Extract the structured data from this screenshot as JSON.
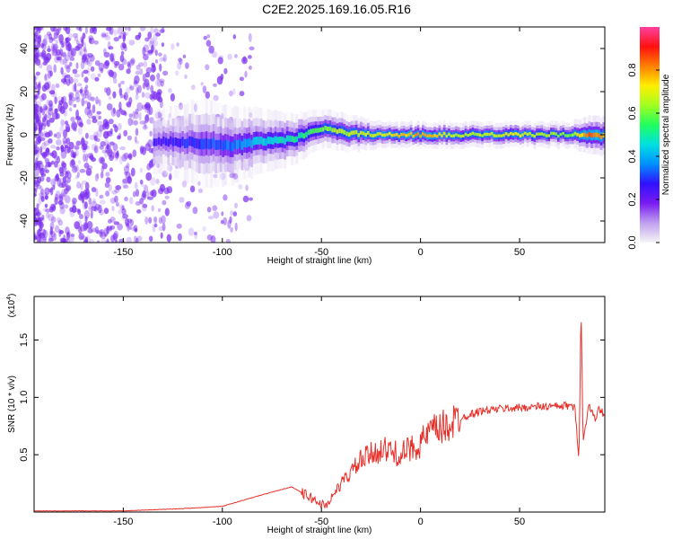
{
  "title": "C2E2.2025.169.16.05.R16",
  "colors": {
    "signal": "#e8302a",
    "specgram_base": "#7a2cf0",
    "colorbar": [
      "#f5f5f5",
      "#c0a0f0",
      "#7a1cf0",
      "#3010ff",
      "#0090ff",
      "#00e0e0",
      "#20ff60",
      "#a0ff20",
      "#ffee00",
      "#ff8000",
      "#ff1010",
      "#ff40a0"
    ]
  },
  "chart_data": [
    {
      "type": "heatmap",
      "name": "spectrogram",
      "xlabel": "Height of straight line (km)",
      "ylabel": "Frequency (Hz)",
      "xlim": [
        -195,
        93
      ],
      "ylim": [
        -50,
        50
      ],
      "xticks": [
        -150,
        -100,
        -50,
        0,
        50
      ],
      "yticks": [
        -40,
        -20,
        0,
        20,
        40
      ],
      "grid": false,
      "ridge": {
        "x": [
          -130,
          -110,
          -95,
          -80,
          -65,
          -50,
          -40,
          -20,
          0,
          20,
          50,
          75,
          85,
          93
        ],
        "y": [
          -3,
          -4,
          -5,
          -3,
          -2,
          3,
          1,
          0,
          0,
          0,
          0,
          0,
          0,
          -1
        ],
        "halfwidth_hz": [
          5,
          7,
          6,
          5,
          4,
          3,
          3,
          2,
          2,
          2,
          2,
          2,
          3,
          3
        ],
        "amplitude": [
          0.25,
          0.3,
          0.35,
          0.45,
          0.5,
          0.6,
          0.65,
          0.7,
          0.8,
          0.65,
          0.7,
          0.6,
          0.85,
          0.75
        ]
      },
      "colorbar": {
        "label": "Normalized spectral amplitude",
        "range": [
          0,
          1
        ],
        "ticks": [
          "0.0",
          "0.2",
          "0.4",
          "0.6",
          "0.8"
        ]
      }
    },
    {
      "type": "line",
      "name": "snr",
      "xlabel": "Height of straight line (km)",
      "ylabel": "SNR (10 * v/v)",
      "scale_note": "(x10",
      "scale_exp": "4",
      "xlim": [
        -195,
        93
      ],
      "ylim": [
        0,
        1.88
      ],
      "xticks": [
        -150,
        -100,
        -50,
        0,
        50
      ],
      "yticks": [
        "0.5",
        "1.0",
        "1.5"
      ],
      "grid": false,
      "series": [
        {
          "x": [
            -195,
            -150,
            -120,
            -100,
            -80,
            -65,
            -55,
            -48,
            -40,
            -30,
            -20,
            -10,
            0,
            5,
            10,
            20,
            30,
            40,
            50,
            60,
            70,
            75,
            78,
            80,
            81,
            82,
            85,
            88,
            90,
            93
          ],
          "y": [
            0.01,
            0.01,
            0.03,
            0.05,
            0.15,
            0.22,
            0.12,
            0.05,
            0.25,
            0.45,
            0.55,
            0.5,
            0.6,
            0.7,
            0.72,
            0.82,
            0.88,
            0.9,
            0.91,
            0.92,
            0.92,
            0.93,
            0.9,
            0.45,
            1.88,
            0.6,
            0.95,
            0.8,
            0.9,
            0.85
          ]
        }
      ]
    }
  ]
}
